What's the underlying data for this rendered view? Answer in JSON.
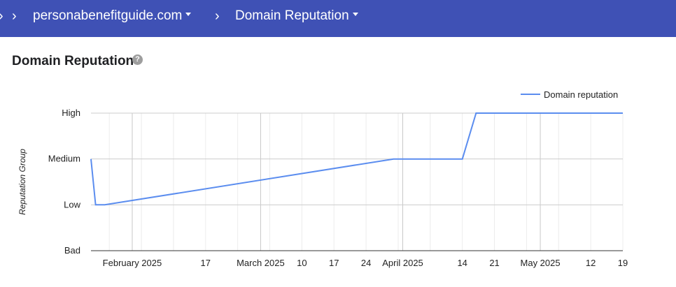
{
  "breadcrumb": {
    "items": [
      {
        "label": "personabenefitguide.com"
      },
      {
        "label": "Domain Reputation"
      }
    ]
  },
  "page": {
    "title": "Domain Reputation",
    "help_icon": "question-mark-icon"
  },
  "colors": {
    "header_bg": "#3f51b5",
    "series_line": "#5b8def"
  },
  "chart_data": {
    "type": "line",
    "ylabel": "Reputation Group",
    "y_categories": [
      "Bad",
      "Low",
      "Medium",
      "High"
    ],
    "x_ticks": [
      {
        "date": "2025-02-01",
        "label": "February 2025"
      },
      {
        "date": "2025-02-17",
        "label": "17"
      },
      {
        "date": "2025-03-01",
        "label": "March 2025"
      },
      {
        "date": "2025-03-10",
        "label": "10"
      },
      {
        "date": "2025-03-17",
        "label": "17"
      },
      {
        "date": "2025-03-24",
        "label": "24"
      },
      {
        "date": "2025-04-01",
        "label": "April 2025"
      },
      {
        "date": "2025-04-14",
        "label": "14"
      },
      {
        "date": "2025-04-21",
        "label": "21"
      },
      {
        "date": "2025-05-01",
        "label": "May 2025"
      },
      {
        "date": "2025-05-12",
        "label": "12"
      },
      {
        "date": "2025-05-19",
        "label": "19"
      }
    ],
    "xlim": [
      "2025-01-23",
      "2025-05-19"
    ],
    "grid": true,
    "legend": "top-right",
    "series": [
      {
        "name": "Domain reputation",
        "points": [
          {
            "x": "2025-01-23",
            "y": "Medium"
          },
          {
            "x": "2025-01-24",
            "y": "Low"
          },
          {
            "x": "2025-01-26",
            "y": "Low"
          },
          {
            "x": "2025-03-30",
            "y": "Medium"
          },
          {
            "x": "2025-04-14",
            "y": "Medium"
          },
          {
            "x": "2025-04-17",
            "y": "High"
          },
          {
            "x": "2025-05-19",
            "y": "High"
          }
        ]
      }
    ]
  }
}
